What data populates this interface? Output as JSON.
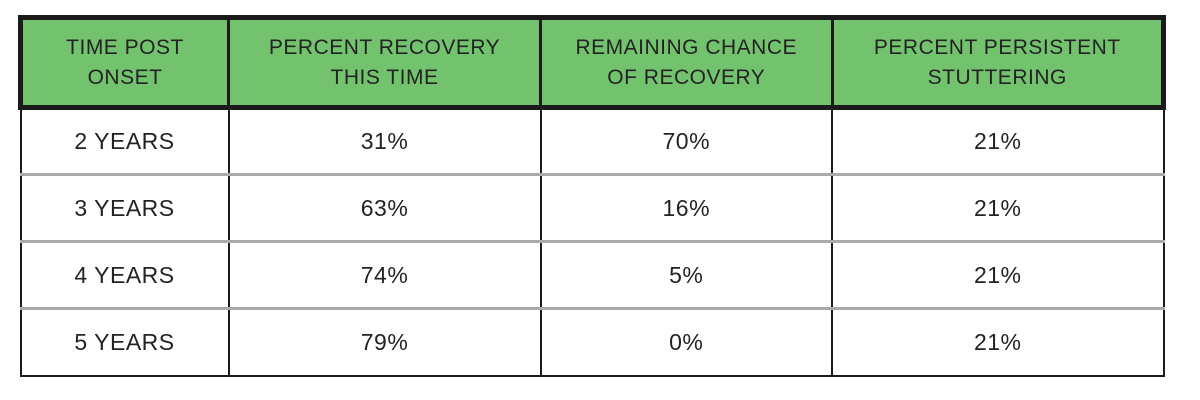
{
  "style": {
    "header_bg": "#73C36E",
    "border_black": "#1B1B1B",
    "row_divider_gray": "#A9A9A9",
    "text_dark": "#232323",
    "page_bg": "#FFFFFF"
  },
  "chart_data": {
    "type": "table",
    "title": "",
    "columns": [
      "TIME POST ONSET",
      "PERCENT RECOVERY THIS TIME",
      "REMAINING CHANCE OF RECOVERY",
      "PERCENT PERSISTENT STUTTERING"
    ],
    "header_lines": [
      [
        "TIME POST",
        "ONSET"
      ],
      [
        "PERCENT RECOVERY",
        "THIS TIME"
      ],
      [
        "REMAINING CHANCE",
        "OF RECOVERY"
      ],
      [
        "PERCENT PERSISTENT",
        "STUTTERING"
      ]
    ],
    "rows": [
      [
        "2 YEARS",
        "31%",
        "70%",
        "21%"
      ],
      [
        "3 YEARS",
        "63%",
        "16%",
        "21%"
      ],
      [
        "4 YEARS",
        "74%",
        "5%",
        "21%"
      ],
      [
        "5 YEARS",
        "79%",
        "0%",
        "21%"
      ]
    ]
  }
}
